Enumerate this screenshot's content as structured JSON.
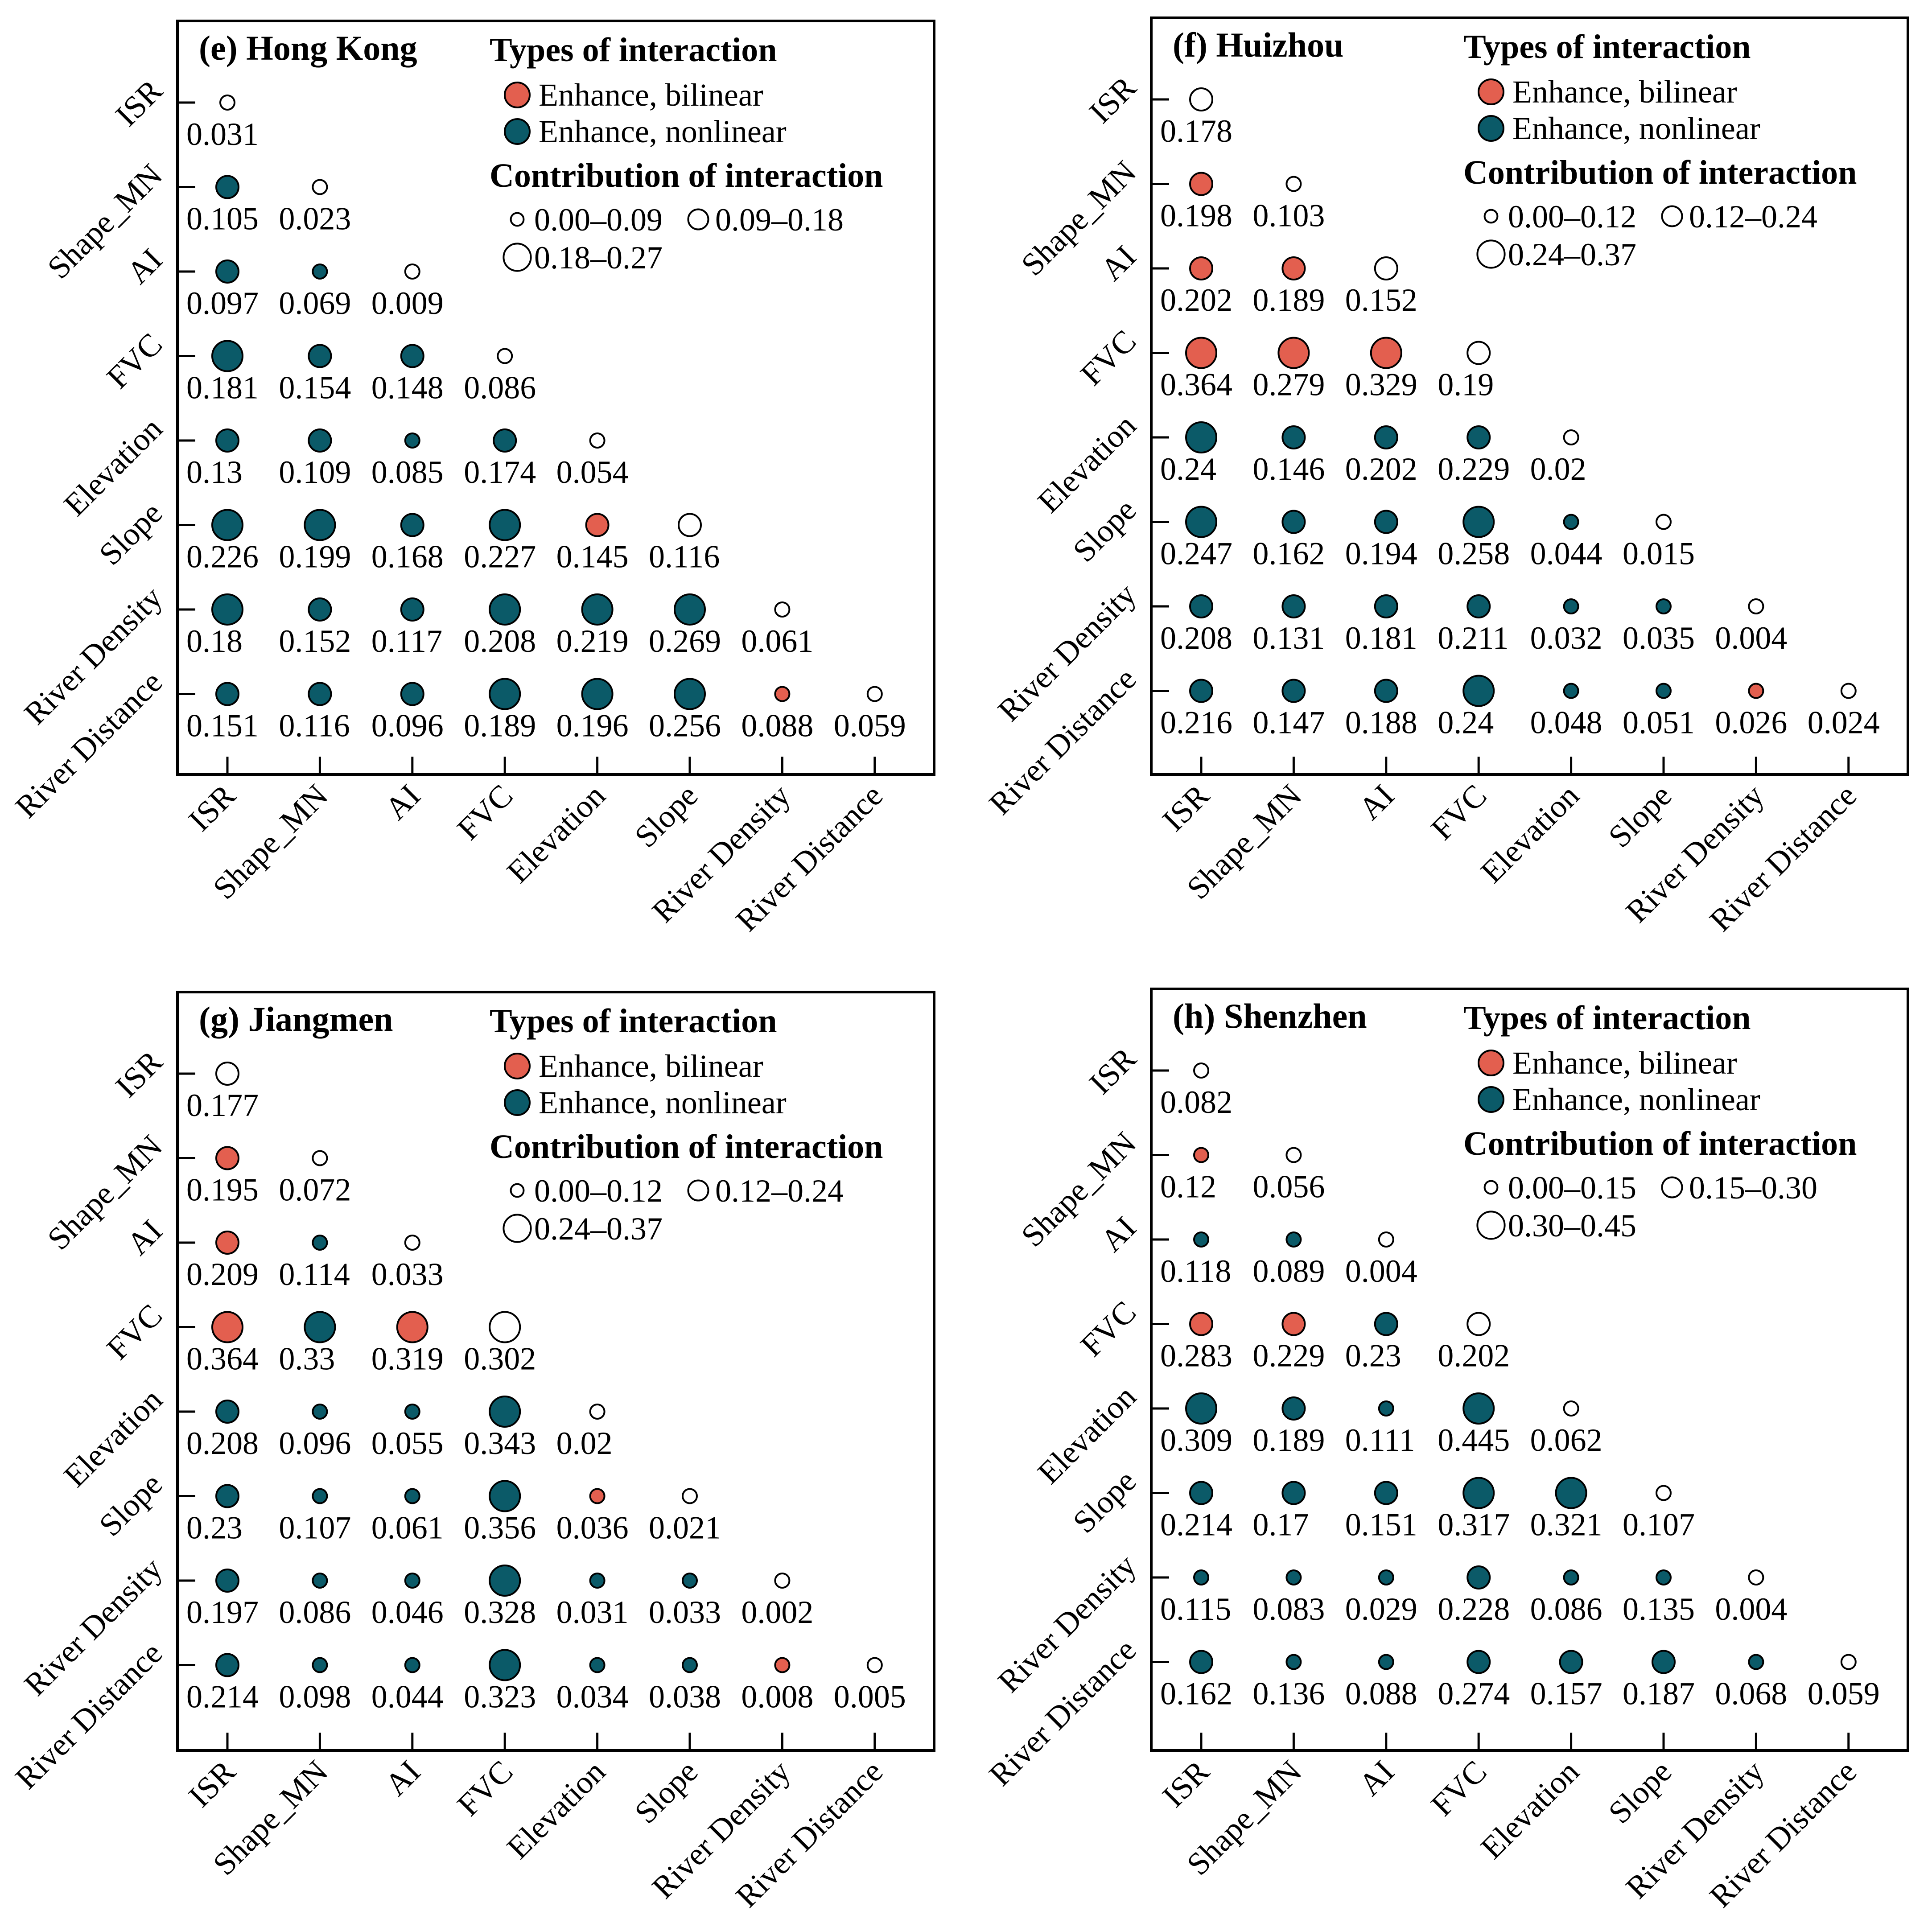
{
  "colors": {
    "bilinear": "#e35f4f",
    "nonlinear": "#0b5a68",
    "self": "#ffffff",
    "outline": "#000000"
  },
  "variables": [
    "ISR",
    "Shape_MN",
    "AI",
    "FVC",
    "Elevation",
    "Slope",
    "River Density",
    "River Distance"
  ],
  "legend": {
    "types_title": "Types of interaction",
    "bilinear_label": "Enhance, bilinear",
    "nonlinear_label": "Enhance, nonlinear",
    "contribution_title": "Contribution of interaction"
  },
  "chart_data": [
    {
      "type": "heatmap",
      "title": "(e) Hong Kong",
      "size_classes": [
        "0.00–0.09",
        "0.09–0.18",
        "0.18–0.27"
      ],
      "thresholds": [
        0.09,
        0.18
      ],
      "values": [
        [
          0.031
        ],
        [
          0.105,
          0.023
        ],
        [
          0.097,
          0.069,
          0.009
        ],
        [
          0.181,
          0.154,
          0.148,
          0.086
        ],
        [
          0.13,
          0.109,
          0.085,
          0.174,
          0.054
        ],
        [
          0.226,
          0.199,
          0.168,
          0.227,
          0.145,
          0.116
        ],
        [
          0.18,
          0.152,
          0.117,
          0.208,
          0.219,
          0.269,
          0.061
        ],
        [
          0.151,
          0.116,
          0.096,
          0.189,
          0.196,
          0.256,
          0.088,
          0.059
        ]
      ],
      "types": [
        [
          "S"
        ],
        [
          "N",
          "S"
        ],
        [
          "N",
          "N",
          "S"
        ],
        [
          "N",
          "N",
          "N",
          "S"
        ],
        [
          "N",
          "N",
          "N",
          "N",
          "S"
        ],
        [
          "N",
          "N",
          "N",
          "N",
          "B",
          "S"
        ],
        [
          "N",
          "N",
          "N",
          "N",
          "N",
          "N",
          "S"
        ],
        [
          "N",
          "N",
          "N",
          "N",
          "N",
          "N",
          "B",
          "S"
        ]
      ]
    },
    {
      "type": "heatmap",
      "title": "(f) Huizhou",
      "size_classes": [
        "0.00–0.12",
        "0.12–0.24",
        "0.24–0.37"
      ],
      "thresholds": [
        0.12,
        0.24
      ],
      "values": [
        [
          0.178
        ],
        [
          0.198,
          0.103
        ],
        [
          0.202,
          0.189,
          0.152
        ],
        [
          0.364,
          0.279,
          0.329,
          0.19
        ],
        [
          0.24,
          0.146,
          0.202,
          0.229,
          0.02
        ],
        [
          0.247,
          0.162,
          0.194,
          0.258,
          0.044,
          0.015
        ],
        [
          0.208,
          0.131,
          0.181,
          0.211,
          0.032,
          0.035,
          0.004
        ],
        [
          0.216,
          0.147,
          0.188,
          0.24,
          0.048,
          0.051,
          0.026,
          0.024
        ]
      ],
      "types": [
        [
          "S"
        ],
        [
          "B",
          "S"
        ],
        [
          "B",
          "B",
          "S"
        ],
        [
          "B",
          "B",
          "B",
          "S"
        ],
        [
          "N",
          "N",
          "N",
          "N",
          "S"
        ],
        [
          "N",
          "N",
          "N",
          "N",
          "N",
          "S"
        ],
        [
          "N",
          "N",
          "N",
          "N",
          "N",
          "N",
          "S"
        ],
        [
          "N",
          "N",
          "N",
          "N",
          "N",
          "N",
          "B",
          "S"
        ]
      ]
    },
    {
      "type": "heatmap",
      "title": "(g) Jiangmen",
      "size_classes": [
        "0.00–0.12",
        "0.12–0.24",
        "0.24–0.37"
      ],
      "thresholds": [
        0.12,
        0.24
      ],
      "values": [
        [
          0.177
        ],
        [
          0.195,
          0.072
        ],
        [
          0.209,
          0.114,
          0.033
        ],
        [
          0.364,
          0.33,
          0.319,
          0.302
        ],
        [
          0.208,
          0.096,
          0.055,
          0.343,
          0.02
        ],
        [
          0.23,
          0.107,
          0.061,
          0.356,
          0.036,
          0.021
        ],
        [
          0.197,
          0.086,
          0.046,
          0.328,
          0.031,
          0.033,
          0.002
        ],
        [
          0.214,
          0.098,
          0.044,
          0.323,
          0.034,
          0.038,
          0.008,
          0.005
        ]
      ],
      "types": [
        [
          "S"
        ],
        [
          "B",
          "S"
        ],
        [
          "B",
          "N",
          "S"
        ],
        [
          "B",
          "N",
          "B",
          "S"
        ],
        [
          "N",
          "N",
          "N",
          "N",
          "S"
        ],
        [
          "N",
          "N",
          "N",
          "N",
          "B",
          "S"
        ],
        [
          "N",
          "N",
          "N",
          "N",
          "N",
          "N",
          "S"
        ],
        [
          "N",
          "N",
          "N",
          "N",
          "N",
          "N",
          "B",
          "S"
        ]
      ]
    },
    {
      "type": "heatmap",
      "title": "(h) Shenzhen",
      "size_classes": [
        "0.00–0.15",
        "0.15–0.30",
        "0.30–0.45"
      ],
      "thresholds": [
        0.15,
        0.3
      ],
      "values": [
        [
          0.082
        ],
        [
          0.12,
          0.056
        ],
        [
          0.118,
          0.089,
          0.004
        ],
        [
          0.283,
          0.229,
          0.23,
          0.202
        ],
        [
          0.309,
          0.189,
          0.111,
          0.445,
          0.062
        ],
        [
          0.214,
          0.17,
          0.151,
          0.317,
          0.321,
          0.107
        ],
        [
          0.115,
          0.083,
          0.029,
          0.228,
          0.086,
          0.135,
          0.004
        ],
        [
          0.162,
          0.136,
          0.088,
          0.274,
          0.157,
          0.187,
          0.068,
          0.059
        ]
      ],
      "types": [
        [
          "S"
        ],
        [
          "B",
          "S"
        ],
        [
          "N",
          "N",
          "S"
        ],
        [
          "B",
          "B",
          "N",
          "S"
        ],
        [
          "N",
          "N",
          "N",
          "N",
          "S"
        ],
        [
          "N",
          "N",
          "N",
          "N",
          "N",
          "S"
        ],
        [
          "N",
          "N",
          "N",
          "N",
          "N",
          "N",
          "S"
        ],
        [
          "N",
          "N",
          "N",
          "N",
          "N",
          "N",
          "N",
          "S"
        ]
      ]
    }
  ]
}
